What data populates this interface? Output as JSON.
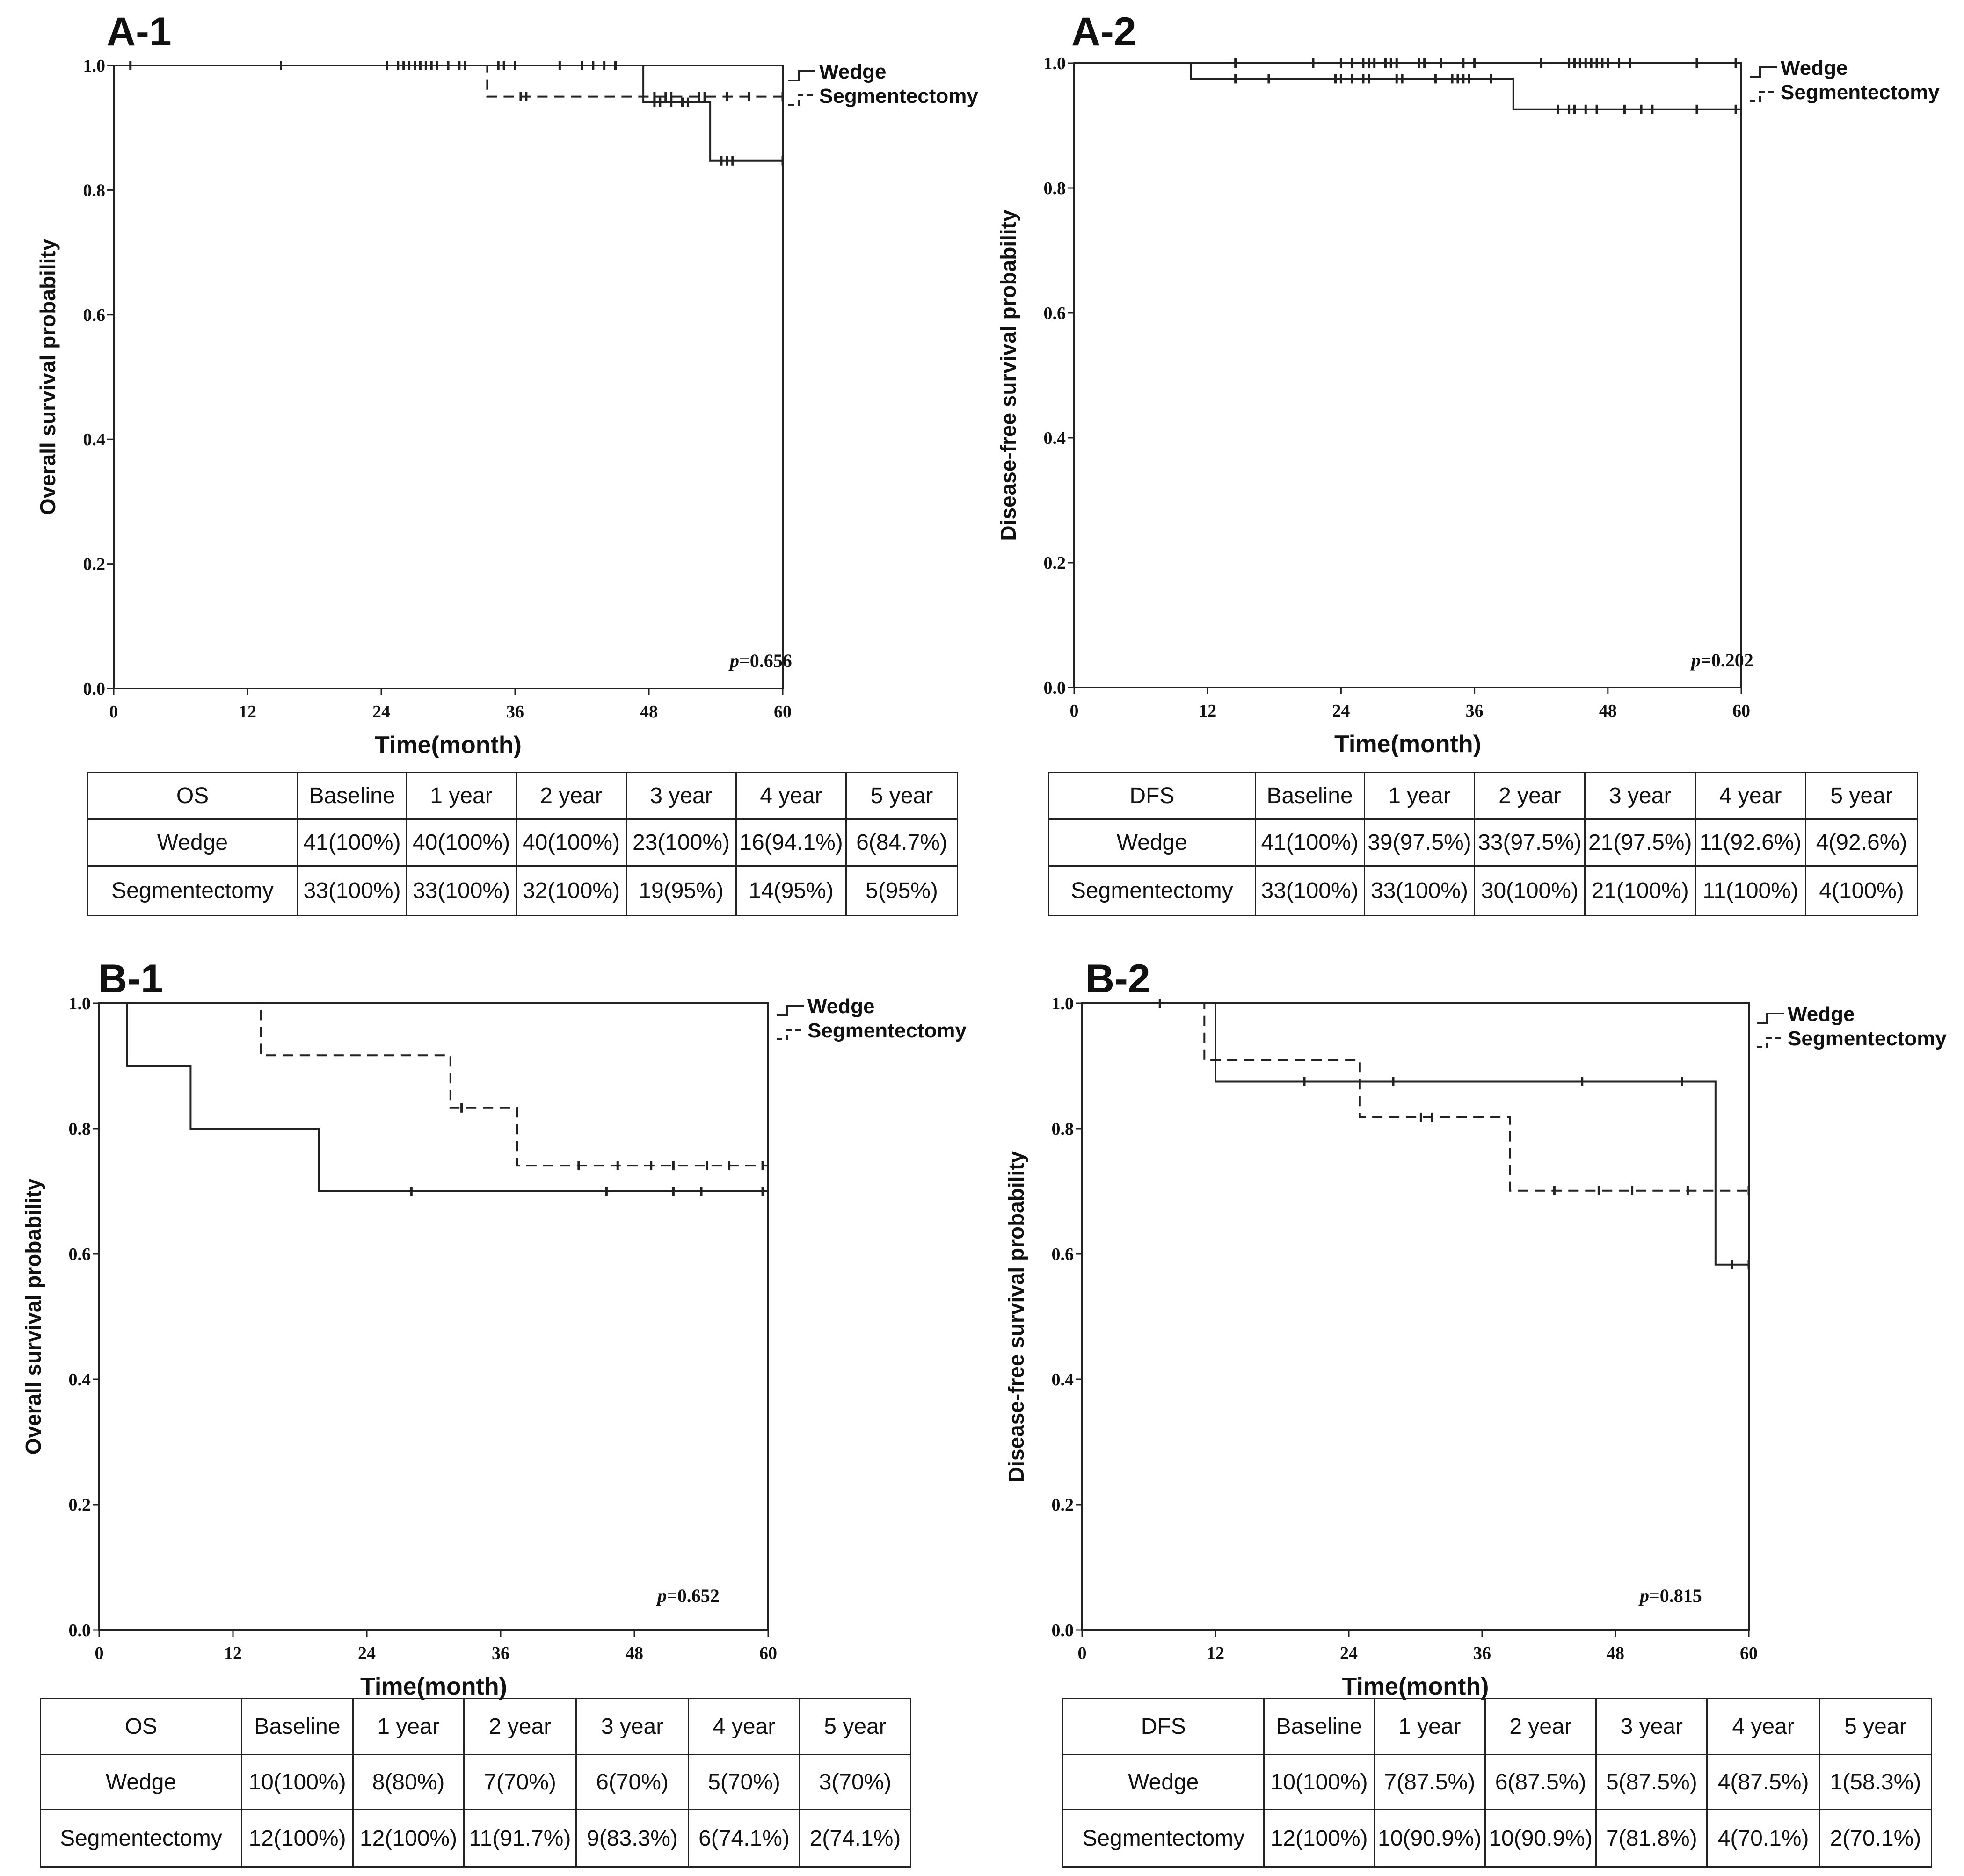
{
  "chart_data": [
    {
      "id": "A-1",
      "panel_label": "A-1",
      "type": "line",
      "ylabel": "Overall survival probability",
      "xlabel": "Time(month)",
      "xlim": [
        0,
        60
      ],
      "ylim": [
        0,
        1
      ],
      "xticks": [
        "0",
        "12",
        "24",
        "36",
        "48",
        "60"
      ],
      "yticks": [
        "0.0",
        "0.2",
        "0.4",
        "0.6",
        "0.8",
        "1.0"
      ],
      "legend_position": "top-right outside",
      "p_label": "p",
      "p_value": "=0.656",
      "series": [
        {
          "name": "Wedge",
          "style": "solid",
          "steps": [
            [
              0,
              1.0
            ],
            [
              47.5,
              1.0
            ],
            [
              47.5,
              0.941
            ],
            [
              53.5,
              0.941
            ],
            [
              53.5,
              0.847
            ],
            [
              60,
              0.847
            ]
          ],
          "censored": [
            [
              1.5,
              1.0
            ],
            [
              15,
              1.0
            ],
            [
              24.5,
              1.0
            ],
            [
              25.5,
              1.0
            ],
            [
              26,
              1.0
            ],
            [
              26.5,
              1.0
            ],
            [
              27,
              1.0
            ],
            [
              27.5,
              1.0
            ],
            [
              28,
              1.0
            ],
            [
              28.5,
              1.0
            ],
            [
              29,
              1.0
            ],
            [
              30,
              1.0
            ],
            [
              31,
              1.0
            ],
            [
              31.5,
              1.0
            ],
            [
              34.5,
              1.0
            ],
            [
              35,
              1.0
            ],
            [
              36,
              1.0
            ],
            [
              40,
              1.0
            ],
            [
              42,
              1.0
            ],
            [
              43,
              1.0
            ],
            [
              44,
              1.0
            ],
            [
              45,
              1.0
            ],
            [
              48.5,
              0.941
            ],
            [
              49,
              0.941
            ],
            [
              50,
              0.941
            ],
            [
              51,
              0.941
            ],
            [
              51.5,
              0.941
            ],
            [
              54.5,
              0.847
            ],
            [
              55,
              0.847
            ],
            [
              55.5,
              0.847
            ],
            [
              60,
              0.847
            ]
          ]
        },
        {
          "name": "Segmentectomy",
          "style": "dashed",
          "steps": [
            [
              0,
              1.0
            ],
            [
              33.5,
              1.0
            ],
            [
              33.5,
              0.95
            ],
            [
              60,
              0.95
            ]
          ],
          "censored": [
            [
              36.5,
              0.95
            ],
            [
              37,
              0.95
            ],
            [
              48.5,
              0.95
            ],
            [
              49.5,
              0.95
            ],
            [
              50,
              0.95
            ],
            [
              52.5,
              0.95
            ],
            [
              53,
              0.95
            ],
            [
              55,
              0.95
            ],
            [
              57,
              0.95
            ],
            [
              60,
              0.95
            ]
          ]
        }
      ],
      "table": {
        "header": [
          "OS",
          "Baseline",
          "1 year",
          "2 year",
          "3 year",
          "4 year",
          "5 year"
        ],
        "rows": [
          [
            "Wedge",
            "41(100%)",
            "40(100%)",
            "40(100%)",
            "23(100%)",
            "16(94.1%)",
            "6(84.7%)"
          ],
          [
            "Segmentectomy",
            "33(100%)",
            "33(100%)",
            "32(100%)",
            "19(95%)",
            "14(95%)",
            "5(95%)"
          ]
        ]
      }
    },
    {
      "id": "A-2",
      "panel_label": "A-2",
      "type": "line",
      "ylabel": "Disease-free survival probability",
      "xlabel": "Time(month)",
      "xlim": [
        0,
        60
      ],
      "ylim": [
        0,
        1
      ],
      "xticks": [
        "0",
        "12",
        "24",
        "36",
        "48",
        "60"
      ],
      "yticks": [
        "0.0",
        "0.2",
        "0.4",
        "0.6",
        "0.8",
        "1.0"
      ],
      "legend_position": "top-right outside",
      "p_label": "p",
      "p_value": "=0.202",
      "series": [
        {
          "name": "Wedge",
          "style": "solid",
          "steps": [
            [
              0,
              1.0
            ],
            [
              10.5,
              1.0
            ],
            [
              10.5,
              0.975
            ],
            [
              39.5,
              0.975
            ],
            [
              39.5,
              0.926
            ],
            [
              60,
              0.926
            ]
          ],
          "censored": [
            [
              14.5,
              0.975
            ],
            [
              17.5,
              0.975
            ],
            [
              23.5,
              0.975
            ],
            [
              24,
              0.975
            ],
            [
              25,
              0.975
            ],
            [
              26,
              0.975
            ],
            [
              26.5,
              0.975
            ],
            [
              29,
              0.975
            ],
            [
              29.5,
              0.975
            ],
            [
              32.5,
              0.975
            ],
            [
              34,
              0.975
            ],
            [
              34.5,
              0.975
            ],
            [
              35,
              0.975
            ],
            [
              35.5,
              0.975
            ],
            [
              37.5,
              0.975
            ],
            [
              43.5,
              0.926
            ],
            [
              44.5,
              0.926
            ],
            [
              45,
              0.926
            ],
            [
              46,
              0.926
            ],
            [
              47,
              0.926
            ],
            [
              49.5,
              0.926
            ],
            [
              51,
              0.926
            ],
            [
              52,
              0.926
            ],
            [
              56,
              0.926
            ],
            [
              59.5,
              0.926
            ]
          ]
        },
        {
          "name": "Segmentectomy",
          "style": "dashed",
          "steps": [
            [
              0,
              1.0
            ],
            [
              60,
              1.0
            ]
          ],
          "censored": [
            [
              14.5,
              1.0
            ],
            [
              21.5,
              1.0
            ],
            [
              24,
              1.0
            ],
            [
              25,
              1.0
            ],
            [
              26,
              1.0
            ],
            [
              26.5,
              1.0
            ],
            [
              27,
              1.0
            ],
            [
              28,
              1.0
            ],
            [
              28.5,
              1.0
            ],
            [
              29,
              1.0
            ],
            [
              31,
              1.0
            ],
            [
              31.5,
              1.0
            ],
            [
              33,
              1.0
            ],
            [
              35,
              1.0
            ],
            [
              36,
              1.0
            ],
            [
              42,
              1.0
            ],
            [
              44.5,
              1.0
            ],
            [
              45,
              1.0
            ],
            [
              45.5,
              1.0
            ],
            [
              46,
              1.0
            ],
            [
              46.5,
              1.0
            ],
            [
              47,
              1.0
            ],
            [
              47.5,
              1.0
            ],
            [
              48,
              1.0
            ],
            [
              49,
              1.0
            ],
            [
              50,
              1.0
            ],
            [
              56,
              1.0
            ],
            [
              59.5,
              1.0
            ]
          ]
        }
      ],
      "table": {
        "header": [
          "DFS",
          "Baseline",
          "1 year",
          "2 year",
          "3 year",
          "4 year",
          "5 year"
        ],
        "rows": [
          [
            "Wedge",
            "41(100%)",
            "39(97.5%)",
            "33(97.5%)",
            "21(97.5%)",
            "11(92.6%)",
            "4(92.6%)"
          ],
          [
            "Segmentectomy",
            "33(100%)",
            "33(100%)",
            "30(100%)",
            "21(100%)",
            "11(100%)",
            "4(100%)"
          ]
        ]
      }
    },
    {
      "id": "B-1",
      "panel_label": "B-1",
      "type": "line",
      "ylabel": "Overall survival probability",
      "xlabel": "Time(month)",
      "xlim": [
        0,
        60
      ],
      "ylim": [
        0,
        1
      ],
      "xticks": [
        "0",
        "12",
        "24",
        "36",
        "48",
        "60"
      ],
      "yticks": [
        "0.0",
        "0.2",
        "0.4",
        "0.6",
        "0.8",
        "1.0"
      ],
      "legend_position": "top-right outside",
      "p_label": "p",
      "p_value": "=0.652",
      "series": [
        {
          "name": "Wedge",
          "style": "solid",
          "steps": [
            [
              0,
              1.0
            ],
            [
              2.5,
              1.0
            ],
            [
              2.5,
              0.9
            ],
            [
              8.2,
              0.9
            ],
            [
              8.2,
              0.8
            ],
            [
              19.7,
              0.8
            ],
            [
              19.7,
              0.7
            ],
            [
              60,
              0.7
            ]
          ],
          "censored": [
            [
              28,
              0.7
            ],
            [
              45.5,
              0.7
            ],
            [
              51.5,
              0.7
            ],
            [
              54,
              0.7
            ],
            [
              59.5,
              0.7
            ]
          ]
        },
        {
          "name": "Segmentectomy",
          "style": "dashed",
          "steps": [
            [
              0,
              1.0
            ],
            [
              14.5,
              1.0
            ],
            [
              14.5,
              0.917
            ],
            [
              31.5,
              0.917
            ],
            [
              31.5,
              0.833
            ],
            [
              37.5,
              0.833
            ],
            [
              37.5,
              0.741
            ],
            [
              60,
              0.741
            ]
          ],
          "censored": [
            [
              32.5,
              0.833
            ],
            [
              43,
              0.741
            ],
            [
              46.5,
              0.741
            ],
            [
              49.5,
              0.741
            ],
            [
              51.5,
              0.741
            ],
            [
              54.5,
              0.741
            ],
            [
              56.5,
              0.741
            ],
            [
              59.5,
              0.741
            ]
          ]
        }
      ],
      "table": {
        "header": [
          "OS",
          "Baseline",
          "1 year",
          "2 year",
          "3 year",
          "4 year",
          "5 year"
        ],
        "rows": [
          [
            "Wedge",
            "10(100%)",
            "8(80%)",
            "7(70%)",
            "6(70%)",
            "5(70%)",
            "3(70%)"
          ],
          [
            "Segmentectomy",
            "12(100%)",
            "12(100%)",
            "11(91.7%)",
            "9(83.3%)",
            "6(74.1%)",
            "2(74.1%)"
          ]
        ]
      }
    },
    {
      "id": "B-2",
      "panel_label": "B-2",
      "type": "line",
      "ylabel": "Disease-free survival probability",
      "xlabel": "Time(month)",
      "xlim": [
        0,
        60
      ],
      "ylim": [
        0,
        1
      ],
      "xticks": [
        "0",
        "12",
        "24",
        "36",
        "48",
        "60"
      ],
      "yticks": [
        "0.0",
        "0.2",
        "0.4",
        "0.6",
        "0.8",
        "1.0"
      ],
      "legend_position": "top-right outside",
      "p_label": "p",
      "p_value": "=0.815",
      "series": [
        {
          "name": "Wedge",
          "style": "solid",
          "steps": [
            [
              0,
              1.0
            ],
            [
              12,
              1.0
            ],
            [
              12,
              0.875
            ],
            [
              57,
              0.875
            ],
            [
              57,
              0.583
            ],
            [
              60,
              0.583
            ]
          ],
          "censored": [
            [
              7,
              1.0
            ],
            [
              20,
              0.875
            ],
            [
              28,
              0.875
            ],
            [
              45,
              0.875
            ],
            [
              54,
              0.875
            ],
            [
              58.5,
              0.583
            ],
            [
              60,
              0.583
            ]
          ]
        },
        {
          "name": "Segmentectomy",
          "style": "dashed",
          "steps": [
            [
              0,
              1.0
            ],
            [
              11,
              1.0
            ],
            [
              11,
              0.909
            ],
            [
              25,
              0.909
            ],
            [
              25,
              0.818
            ],
            [
              38.5,
              0.818
            ],
            [
              38.5,
              0.701
            ],
            [
              60,
              0.701
            ]
          ],
          "censored": [
            [
              30.5,
              0.818
            ],
            [
              31.5,
              0.818
            ],
            [
              42.5,
              0.701
            ],
            [
              46.5,
              0.701
            ],
            [
              49.5,
              0.701
            ],
            [
              54.5,
              0.701
            ],
            [
              60,
              0.701
            ]
          ]
        }
      ],
      "table": {
        "header": [
          "DFS",
          "Baseline",
          "1 year",
          "2 year",
          "3 year",
          "4 year",
          "5 year"
        ],
        "rows": [
          [
            "Wedge",
            "10(100%)",
            "7(87.5%)",
            "6(87.5%)",
            "5(87.5%)",
            "4(87.5%)",
            "1(58.3%)"
          ],
          [
            "Segmentectomy",
            "12(100%)",
            "10(90.9%)",
            "10(90.9%)",
            "7(81.8%)",
            "4(70.1%)",
            "2(70.1%)"
          ]
        ]
      }
    }
  ]
}
